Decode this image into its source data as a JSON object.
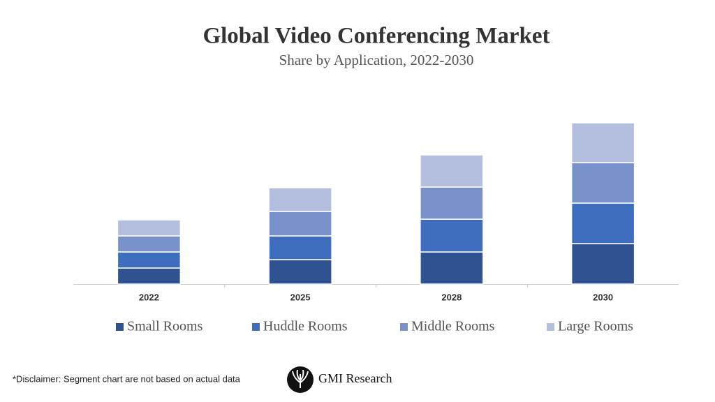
{
  "chart_data": {
    "type": "bar",
    "stacked": true,
    "title": "Global Video Conferencing Market",
    "subtitle": "Share by Application, 2022-2030",
    "categories": [
      "2022",
      "2025",
      "2028",
      "2030"
    ],
    "series": [
      {
        "name": "Small Rooms",
        "color": "#2f5391",
        "values": [
          23,
          35,
          46,
          58
        ]
      },
      {
        "name": "Huddle Rooms",
        "color": "#3f6dbd",
        "values": [
          23,
          34,
          47,
          58
        ]
      },
      {
        "name": "Middle Rooms",
        "color": "#7991ca",
        "values": [
          23,
          35,
          46,
          58
        ]
      },
      {
        "name": "Large Rooms",
        "color": "#b4bfdf",
        "values": [
          23,
          34,
          46,
          57
        ]
      }
    ]
  },
  "footer": {
    "disclaimer": "*Disclaimer:  Segment chart are not based on actual data",
    "brand": "GMI Research"
  }
}
